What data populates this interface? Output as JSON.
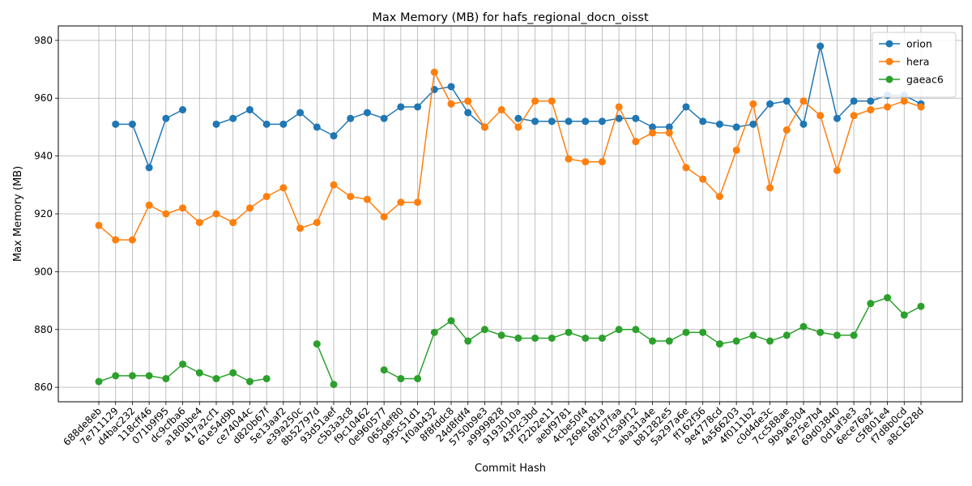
{
  "chart_data": {
    "type": "line",
    "title": "Max Memory (MB) for hafs_regional_docn_oisst",
    "xlabel": "Commit Hash",
    "ylabel": "Max Memory (MB)",
    "ylim": [
      855,
      985
    ],
    "yticks": [
      860,
      880,
      900,
      920,
      940,
      960,
      980
    ],
    "grid": true,
    "legend_position": "top-right",
    "categories": [
      "688de8eb",
      "7e711129",
      "d4bac232",
      "118cff46",
      "071b9f95",
      "dc9cfba6",
      "a180bbe4",
      "417a2cf1",
      "61e54d9b",
      "ce74044c",
      "d820b67f",
      "5e13aaf2",
      "e39a250c",
      "8b52797d",
      "93d51aef",
      "c5b3a3c8",
      "f9c10462",
      "0e960577",
      "065def80",
      "995c51d1",
      "1f0ab432",
      "8f8fddc8",
      "24d8fdf4",
      "5750b9e3",
      "a9999828",
      "9193010a",
      "43f2c3bd",
      "f22b2e11",
      "aebf9781",
      "4cbe50f4",
      "269e181a",
      "68fd7faa",
      "1c5a9f12",
      "aba31a4e",
      "b81282e5",
      "5a297a6e",
      "ff162f36",
      "9e4778cd",
      "4a566203",
      "4f0111b2",
      "c0d4de3c",
      "7cc588ae",
      "9b9a6304",
      "4e75e7b4",
      "69d03840",
      "0d1af3e3",
      "6ece76a2",
      "c5f801e4",
      "f7d8b0cd",
      "a8c1628d"
    ],
    "series": [
      {
        "name": "orion",
        "color": "#1f77b4",
        "values": [
          null,
          951,
          951,
          936,
          953,
          956,
          null,
          951,
          953,
          956,
          951,
          951,
          955,
          950,
          947,
          953,
          955,
          953,
          957,
          957,
          963,
          964,
          955,
          950,
          null,
          953,
          952,
          952,
          952,
          952,
          952,
          953,
          953,
          950,
          950,
          957,
          952,
          951,
          950,
          951,
          958,
          959,
          951,
          978,
          953,
          959,
          959,
          961,
          961,
          958
        ]
      },
      {
        "name": "hera",
        "color": "#ff7f0e",
        "values": [
          916,
          911,
          911,
          923,
          920,
          922,
          917,
          920,
          917,
          922,
          926,
          929,
          915,
          917,
          930,
          926,
          925,
          919,
          924,
          924,
          969,
          958,
          959,
          950,
          956,
          950,
          959,
          959,
          939,
          938,
          938,
          957,
          945,
          948,
          948,
          936,
          932,
          926,
          942,
          958,
          929,
          949,
          959,
          954,
          935,
          954,
          956,
          957,
          959,
          957
        ]
      },
      {
        "name": "gaeac6",
        "color": "#2ca02c",
        "values": [
          862,
          864,
          864,
          864,
          863,
          868,
          865,
          863,
          865,
          862,
          863,
          null,
          null,
          875,
          861,
          null,
          null,
          866,
          863,
          863,
          879,
          883,
          876,
          880,
          878,
          877,
          877,
          877,
          879,
          877,
          877,
          880,
          880,
          876,
          876,
          879,
          879,
          875,
          876,
          878,
          876,
          878,
          881,
          879,
          878,
          878,
          889,
          891,
          885,
          888
        ]
      }
    ]
  }
}
